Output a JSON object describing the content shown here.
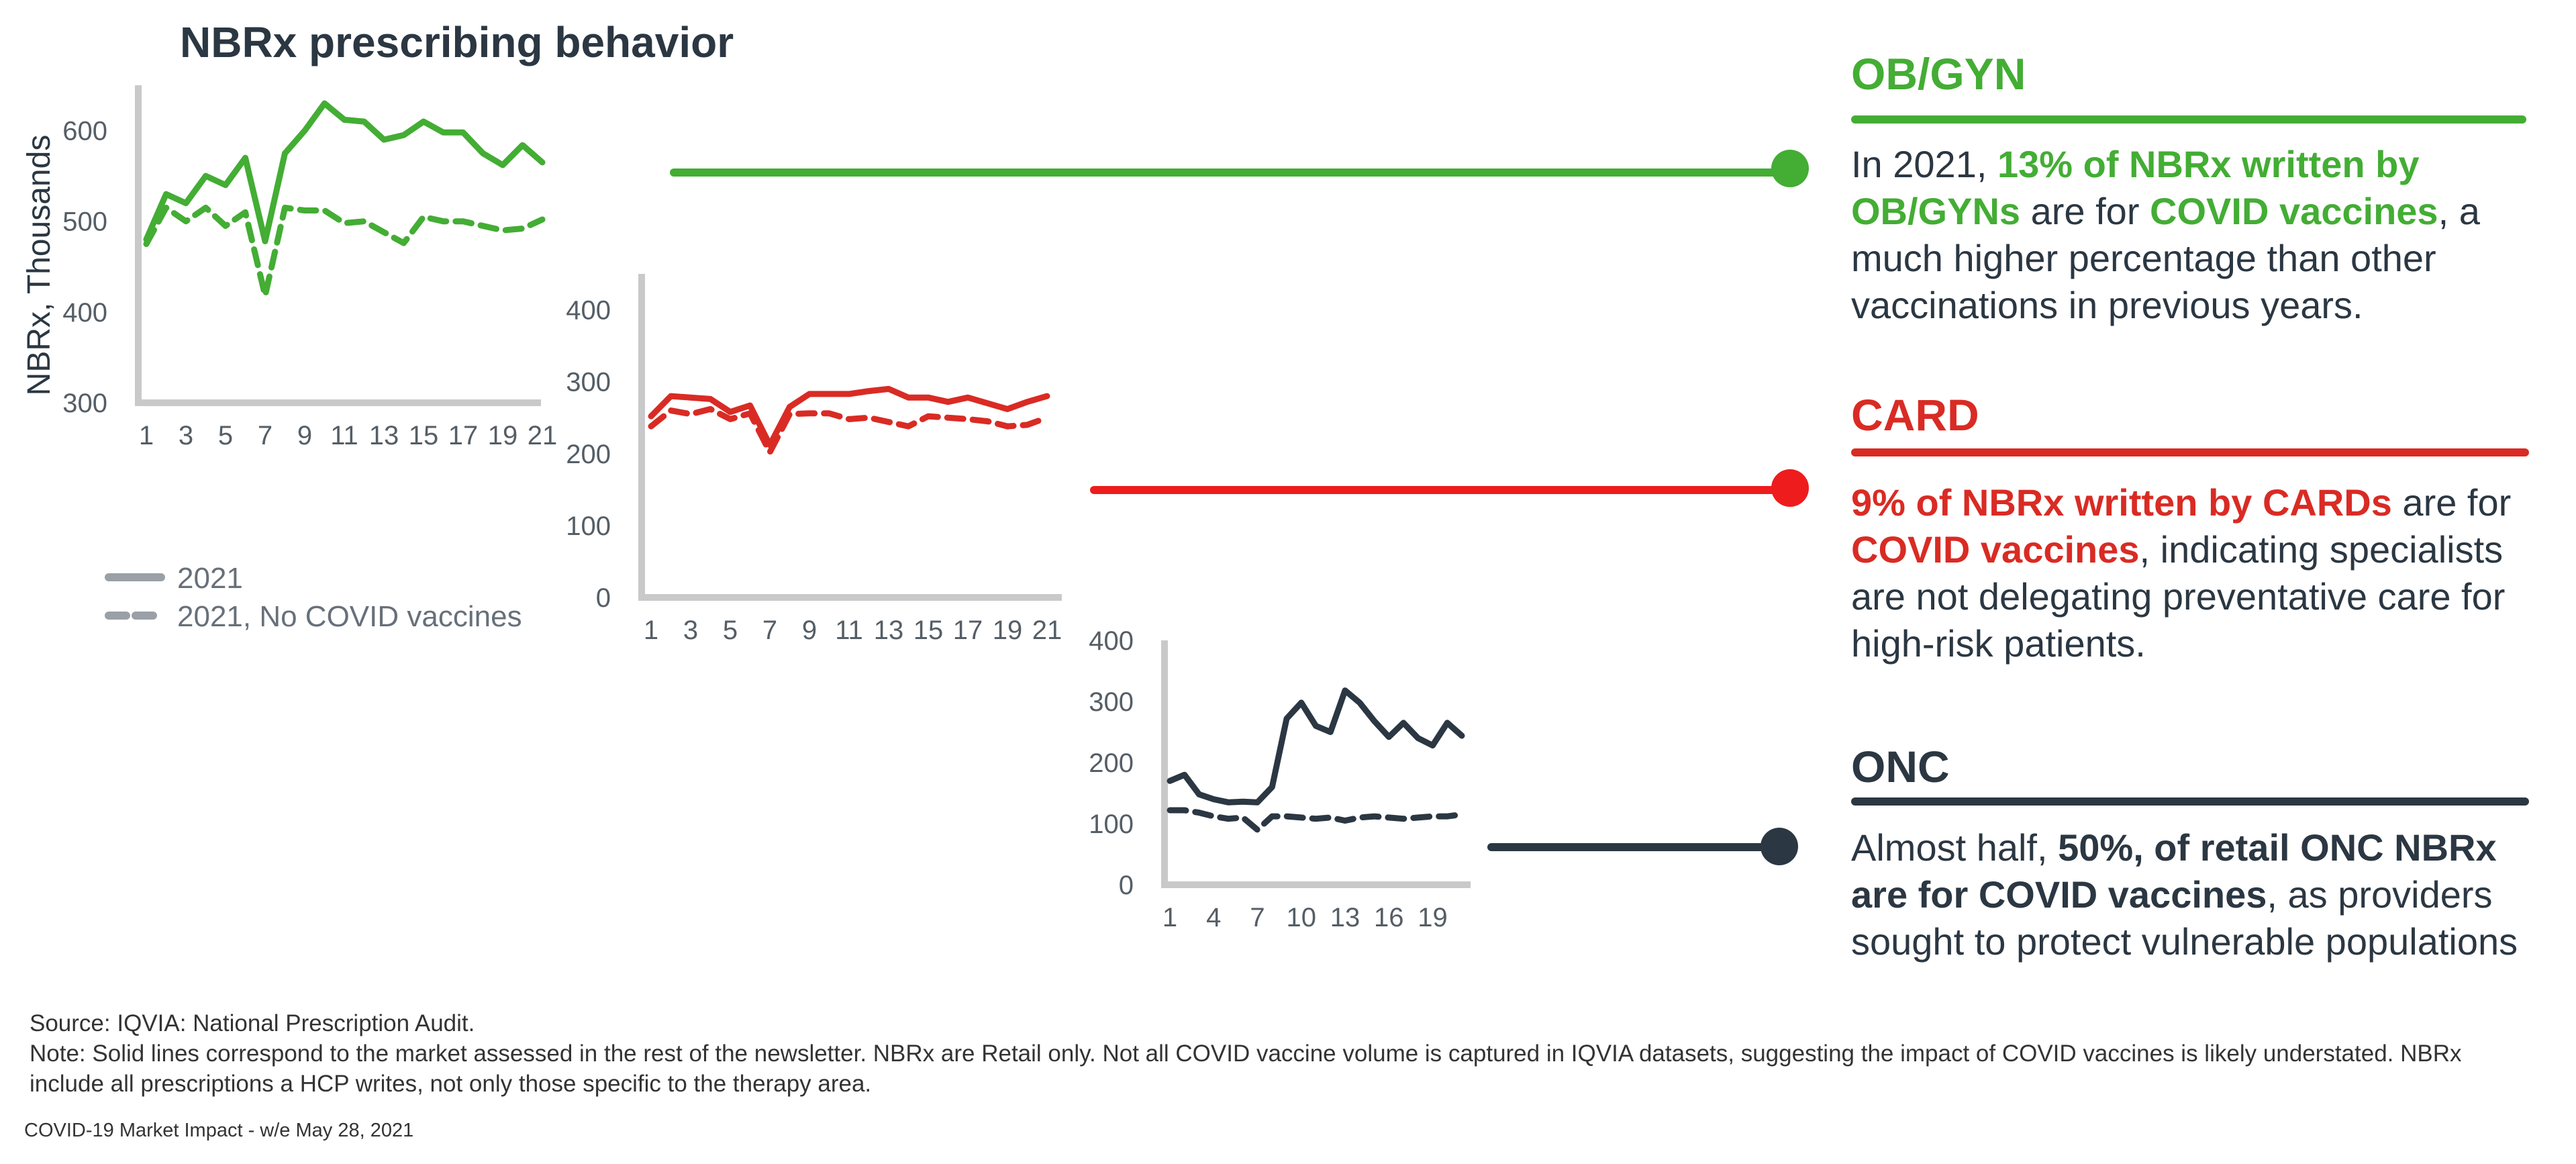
{
  "title": "NBRx prescribing behavior",
  "colors": {
    "obgyn": "#43ad34",
    "card": "#d92b24",
    "card_connector": "#ee1c1c",
    "onc": "#2b3742",
    "axis": "#c9c9c9",
    "legend": "#9aa0a6",
    "text": "#2b3742"
  },
  "legend": {
    "solid_label": "2021",
    "dashed_label": "2021, No COVID vaccines"
  },
  "chart_data": [
    {
      "name": "OB/GYN",
      "type": "line",
      "ylabel": "NBRx, Thousands",
      "ylim": [
        300,
        650
      ],
      "yticks": [
        300,
        400,
        500,
        600
      ],
      "xlim": [
        1,
        21
      ],
      "xticks": [
        1,
        3,
        5,
        7,
        9,
        11,
        13,
        15,
        17,
        19,
        21
      ],
      "x": [
        1,
        2,
        3,
        4,
        5,
        6,
        7,
        8,
        9,
        10,
        11,
        12,
        13,
        14,
        15,
        16,
        17,
        18,
        19,
        20,
        21
      ],
      "series": [
        {
          "name": "2021",
          "style": "solid",
          "values": [
            480,
            530,
            520,
            550,
            540,
            570,
            478,
            575,
            600,
            630,
            612,
            610,
            590,
            595,
            610,
            598,
            598,
            575,
            562,
            584,
            565
          ]
        },
        {
          "name": "2021, No COVID vaccines",
          "style": "dashed",
          "values": [
            475,
            515,
            500,
            515,
            495,
            510,
            418,
            515,
            512,
            512,
            498,
            500,
            488,
            476,
            505,
            500,
            500,
            495,
            490,
            492,
            502
          ]
        }
      ]
    },
    {
      "name": "CARD",
      "type": "line",
      "ylim": [
        0,
        450
      ],
      "yticks": [
        0,
        100,
        200,
        300,
        400
      ],
      "xlim": [
        1,
        21
      ],
      "xticks": [
        1,
        3,
        5,
        7,
        9,
        11,
        13,
        15,
        17,
        19,
        21
      ],
      "x": [
        1,
        2,
        3,
        4,
        5,
        6,
        7,
        8,
        9,
        10,
        11,
        12,
        13,
        14,
        15,
        16,
        17,
        18,
        19,
        20,
        21
      ],
      "series": [
        {
          "name": "2021",
          "style": "solid",
          "values": [
            252,
            280,
            278,
            276,
            258,
            267,
            212,
            265,
            283,
            283,
            283,
            287,
            290,
            278,
            278,
            272,
            278,
            270,
            262,
            272,
            280
          ]
        },
        {
          "name": "2021, No COVID vaccines",
          "style": "dashed",
          "values": [
            238,
            260,
            255,
            262,
            248,
            256,
            202,
            255,
            256,
            256,
            248,
            250,
            244,
            238,
            252,
            250,
            248,
            245,
            238,
            240,
            250
          ]
        }
      ]
    },
    {
      "name": "ONC",
      "type": "line",
      "ylim": [
        0,
        400
      ],
      "yticks": [
        0,
        100,
        200,
        300,
        400
      ],
      "xlim": [
        1,
        21
      ],
      "xticks": [
        1,
        4,
        7,
        10,
        13,
        16,
        19
      ],
      "x": [
        1,
        2,
        3,
        4,
        5,
        6,
        7,
        8,
        9,
        10,
        11,
        12,
        13,
        14,
        15,
        16,
        17,
        18,
        19,
        20,
        21
      ],
      "series": [
        {
          "name": "2021",
          "style": "solid",
          "values": [
            170,
            180,
            148,
            140,
            135,
            136,
            135,
            160,
            272,
            298,
            260,
            250,
            318,
            298,
            268,
            242,
            265,
            240,
            228,
            265,
            244
          ]
        },
        {
          "name": "2021, No COVID vaccines",
          "style": "dashed",
          "values": [
            122,
            122,
            118,
            112,
            108,
            110,
            90,
            112,
            112,
            110,
            108,
            110,
            105,
            110,
            112,
            110,
            108,
            110,
            112,
            112,
            115
          ]
        }
      ]
    }
  ],
  "sections": {
    "obgyn": {
      "title": "OB/GYN",
      "t1": "In 2021, ",
      "t2": "13% of NBRx written by OB/GYNs",
      "t3": " are for ",
      "t4": "COVID vaccines",
      "t5": ", a much higher percentage than other vaccinations in previous years."
    },
    "card": {
      "title": "CARD",
      "t1": "9% of NBRx written by CARDs",
      "t2": " are for ",
      "t3": "COVID vaccines",
      "t4": ", indicating specialists are not delegating preventative care for high-risk patients."
    },
    "onc": {
      "title": "ONC",
      "t1": "Almost half, ",
      "t2": "50%, of retail ONC NBRx are for COVID vaccines",
      "t3": ", as providers sought to protect vulnerable populations"
    }
  },
  "footnotes": {
    "source": "Source: IQVIA: National Prescription Audit.",
    "note": "Note: Solid lines correspond to the market assessed in the rest of the newsletter. NBRx are Retail only. Not all COVID vaccine volume is captured in IQVIA datasets, suggesting the impact of COVID vaccines is likely understated. NBRx include all prescriptions a HCP writes, not only those specific to the therapy area.",
    "footer": "COVID-19 Market Impact - w/e May 28, 2021"
  }
}
